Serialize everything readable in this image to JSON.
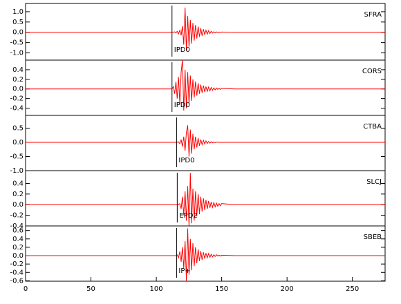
{
  "chart_data": [
    {
      "type": "line",
      "label": "SFRA",
      "color": "#ff0000",
      "xlim": [
        0,
        275
      ],
      "ylim": [
        -1.35,
        1.4
      ],
      "yticks": [
        {
          "value": 1,
          "label": "1.0"
        },
        0.5,
        {
          "value": 0,
          "label": "0.0"
        },
        -0.5,
        {
          "value": -1,
          "label": "-1.0"
        }
      ],
      "pick": {
        "x": 112,
        "label": "IPD0"
      },
      "x": [
        0,
        112,
        113,
        114,
        115,
        116,
        117,
        118,
        119,
        120,
        121,
        122,
        123,
        124,
        125,
        126,
        127,
        128,
        129,
        130,
        131,
        132,
        133,
        134,
        135,
        136,
        137,
        138,
        139,
        140,
        141,
        142,
        143,
        144,
        145,
        146,
        147,
        148,
        149,
        150,
        160,
        180,
        275
      ],
      "values": [
        0,
        0,
        0,
        0.02,
        -0.03,
        0.05,
        -0.08,
        0.1,
        -0.15,
        0.3,
        -0.6,
        1.2,
        -0.9,
        0.8,
        -0.7,
        0.6,
        -0.55,
        0.45,
        -0.4,
        0.35,
        -0.3,
        0.28,
        -0.22,
        0.2,
        -0.17,
        0.15,
        -0.12,
        0.1,
        -0.09,
        0.08,
        -0.06,
        0.05,
        -0.04,
        0.03,
        -0.03,
        0.02,
        -0.02,
        0.01,
        -0.01,
        0.01,
        0,
        0,
        0
      ]
    },
    {
      "type": "line",
      "label": "CORS",
      "color": "#ff0000",
      "xlim": [
        0,
        275
      ],
      "ylim": [
        -0.55,
        0.6
      ],
      "yticks": [
        0.4,
        0.2,
        {
          "value": 0,
          "label": "0.0"
        },
        -0.2,
        -0.4
      ],
      "pick": {
        "x": 112,
        "label": "IPD0"
      },
      "x": [
        0,
        112,
        113,
        114,
        115,
        116,
        117,
        118,
        119,
        120,
        121,
        122,
        123,
        124,
        125,
        126,
        127,
        128,
        129,
        130,
        131,
        132,
        133,
        134,
        135,
        136,
        137,
        138,
        139,
        140,
        141,
        142,
        143,
        144,
        145,
        146,
        147,
        148,
        149,
        150,
        160,
        180,
        275
      ],
      "values": [
        0,
        0,
        0.05,
        -0.1,
        0.15,
        -0.2,
        0.25,
        -0.3,
        0.35,
        0.6,
        -0.45,
        0.4,
        -0.4,
        0.35,
        -0.3,
        0.28,
        -0.25,
        0.2,
        -0.18,
        0.15,
        -0.14,
        0.12,
        -0.1,
        0.09,
        -0.08,
        0.07,
        -0.06,
        0.05,
        -0.05,
        0.04,
        -0.04,
        0.03,
        -0.03,
        0.02,
        -0.02,
        0.02,
        -0.01,
        0.01,
        -0.01,
        0.01,
        0,
        0,
        0
      ]
    },
    {
      "type": "line",
      "label": "CTBA",
      "color": "#ff0000",
      "xlim": [
        0,
        275
      ],
      "ylim": [
        -1.0,
        0.95
      ],
      "yticks": [
        0.5,
        {
          "value": 0,
          "label": "0.0"
        },
        -0.5,
        {
          "value": -1,
          "label": "-1.0"
        }
      ],
      "pick": {
        "x": 115.5,
        "label": "IPD0"
      },
      "x": [
        0,
        112,
        113,
        114,
        115,
        116,
        117,
        118,
        119,
        120,
        121,
        122,
        123,
        124,
        125,
        126,
        127,
        128,
        129,
        130,
        131,
        132,
        133,
        134,
        135,
        136,
        137,
        138,
        139,
        140,
        141,
        142,
        143,
        144,
        145,
        146,
        147,
        148,
        149,
        150,
        160,
        180,
        275
      ],
      "values": [
        0,
        0,
        0,
        0,
        0,
        0,
        0.02,
        -0.05,
        0.1,
        -0.15,
        0.2,
        -0.3,
        0.35,
        0.6,
        -0.5,
        0.45,
        -0.4,
        0.3,
        -0.25,
        0.2,
        -0.18,
        0.15,
        -0.12,
        0.1,
        -0.08,
        0.07,
        -0.06,
        0.05,
        -0.04,
        0.03,
        -0.03,
        0.02,
        -0.02,
        0.01,
        -0.01,
        0.01,
        0,
        0,
        0,
        0,
        0,
        0,
        0
      ]
    },
    {
      "type": "line",
      "label": "SLCJ",
      "color": "#ff0000",
      "xlim": [
        0,
        275
      ],
      "ylim": [
        -0.4,
        0.64
      ],
      "yticks": [
        0.4,
        0.2,
        {
          "value": 0,
          "label": "0.0"
        },
        -0.2,
        -0.4
      ],
      "pick": {
        "x": 116,
        "label": "EPD2"
      },
      "x": [
        0,
        112,
        113,
        114,
        115,
        116,
        117,
        118,
        119,
        120,
        121,
        122,
        123,
        124,
        125,
        126,
        127,
        128,
        129,
        130,
        131,
        132,
        133,
        134,
        135,
        136,
        137,
        138,
        139,
        140,
        141,
        142,
        143,
        144,
        145,
        146,
        147,
        148,
        149,
        150,
        160,
        180,
        275
      ],
      "values": [
        0,
        0,
        0,
        0,
        0,
        0,
        0,
        0.02,
        -0.08,
        0.15,
        -0.2,
        0.25,
        -0.3,
        0.35,
        -0.4,
        0.6,
        -0.35,
        0.3,
        -0.3,
        0.25,
        -0.22,
        0.2,
        -0.18,
        0.15,
        -0.13,
        0.12,
        -0.1,
        0.09,
        -0.08,
        0.07,
        -0.06,
        0.05,
        -0.05,
        0.04,
        -0.04,
        0.03,
        -0.03,
        0.02,
        -0.02,
        0.02,
        0,
        0,
        0
      ]
    },
    {
      "type": "line",
      "label": "SBEB",
      "color": "#ff0000",
      "xlim": [
        0,
        275
      ],
      "ylim": [
        -0.61,
        0.71
      ],
      "yticks": [
        0.6,
        0.4,
        0.2,
        {
          "value": 0,
          "label": "0.0"
        },
        -0.2,
        -0.4,
        -0.6
      ],
      "xticks": [
        0,
        50,
        100,
        150,
        200,
        250
      ],
      "pick": {
        "x": 115.5,
        "label": "IP+"
      },
      "x": [
        0,
        112,
        113,
        114,
        115,
        116,
        117,
        118,
        119,
        120,
        121,
        122,
        123,
        124,
        125,
        126,
        127,
        128,
        129,
        130,
        131,
        132,
        133,
        134,
        135,
        136,
        137,
        138,
        139,
        140,
        141,
        142,
        143,
        144,
        145,
        146,
        147,
        148,
        149,
        150,
        160,
        180,
        275
      ],
      "values": [
        0,
        0,
        0,
        0,
        0,
        0.02,
        -0.05,
        0.1,
        -0.15,
        0.2,
        -0.3,
        0.35,
        -0.6,
        0.65,
        -0.45,
        0.4,
        -0.35,
        0.3,
        -0.25,
        0.2,
        -0.18,
        0.15,
        -0.13,
        0.11,
        -0.1,
        0.08,
        -0.07,
        0.06,
        -0.05,
        0.05,
        -0.04,
        0.03,
        -0.03,
        0.02,
        -0.02,
        0.02,
        -0.01,
        0.01,
        -0.01,
        0.01,
        0,
        0,
        0
      ]
    }
  ]
}
